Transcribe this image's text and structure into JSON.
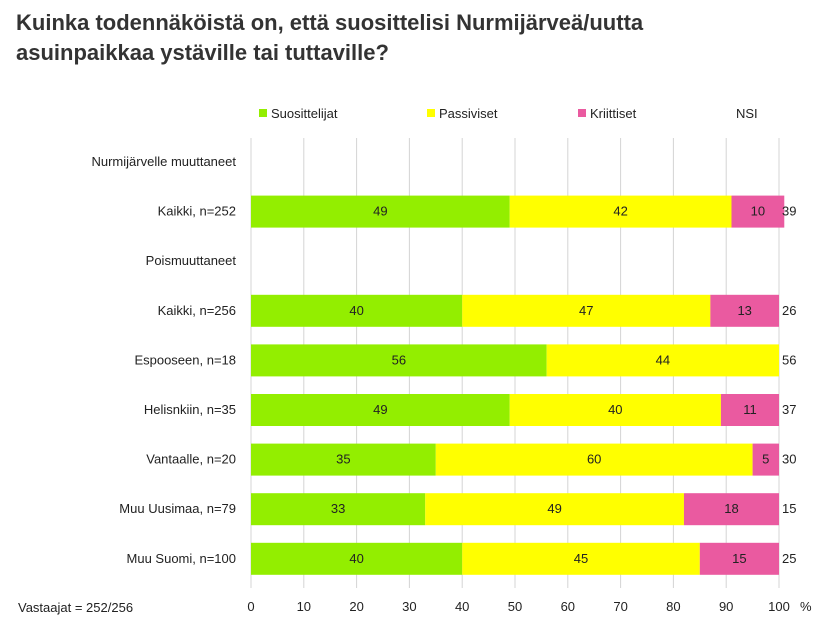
{
  "title": {
    "line1": "Kuinka todennäköistä on, että suosittelisi Nurmijärveä/uutta",
    "line2": "asuinpaikkaa ystäville tai tuttaville?"
  },
  "footnote": "Vastaajat = 252/256",
  "chart_data": {
    "type": "bar",
    "orientation": "horizontal",
    "stacked": true,
    "unit": "%",
    "xlim": [
      0,
      100
    ],
    "ticks": [
      0,
      10,
      20,
      30,
      40,
      50,
      60,
      70,
      80,
      90,
      100
    ],
    "legend_position": "top",
    "series": [
      {
        "name": "Suosittelijat",
        "color": "#93ee00"
      },
      {
        "name": "Passiviset",
        "color": "#ffff00"
      },
      {
        "name": "Kriittiset",
        "color": "#ea5aa0"
      }
    ],
    "extra_column_name": "NSI",
    "rows": [
      {
        "label": "Nurmijärvelle muuttaneet",
        "group": true
      },
      {
        "label": "Kaikki, n=252",
        "values": [
          49,
          42,
          10
        ],
        "nsi": "39"
      },
      {
        "label": "Poismuuttaneet",
        "group": true
      },
      {
        "label": "Kaikki, n=256",
        "values": [
          40,
          47,
          13
        ],
        "nsi": "26"
      },
      {
        "label": "Espooseen, n=18",
        "values": [
          56,
          44,
          0
        ],
        "nsi": "56"
      },
      {
        "label": "Helisnkiin, n=35",
        "values": [
          49,
          40,
          11
        ],
        "nsi": "37"
      },
      {
        "label": "Vantaalle, n=20",
        "values": [
          35,
          60,
          5
        ],
        "nsi": "30"
      },
      {
        "label": "Muu Uusimaa, n=79",
        "values": [
          33,
          49,
          18
        ],
        "nsi": "15"
      },
      {
        "label": "Muu Suomi, n=100",
        "values": [
          40,
          45,
          15
        ],
        "nsi": "25"
      }
    ]
  }
}
